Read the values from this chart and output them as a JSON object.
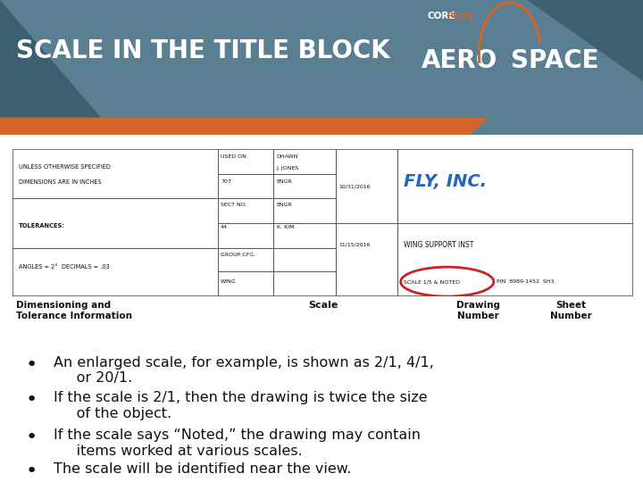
{
  "title": "SCALE IN THE TITLE BLOCK",
  "header_bg": "#5a7f93",
  "header_text_color": "#ffffff",
  "header_font_size": 20,
  "accent_orange": "#d4652a",
  "accent_blue": "#4a7aaa",
  "body_bg": "#ffffff",
  "bullet_points": [
    "An enlarged scale, for example, is shown as 2/1, 4/1,\n     or 20/1.",
    "If the scale is 2/1, then the drawing is twice the size\n     of the object.",
    "If the scale says “Noted,” the drawing may contain\n     items worked at various scales.",
    "The scale will be identified near the view."
  ],
  "label_left": "Dimensioning and\nTolerance Information",
  "label_center": "Scale",
  "label_right1": "Drawing\nNumber",
  "label_right2": "Sheet\nNumber",
  "circle_color": "#cc2222",
  "fly_inc_color": "#2266bb"
}
